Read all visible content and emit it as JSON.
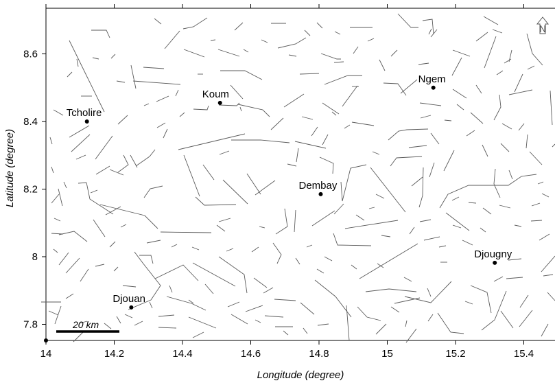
{
  "map": {
    "x_axis": {
      "title": "Longitude (degree)",
      "ticks": [
        14,
        14.2,
        14.4,
        14.6,
        14.8,
        15,
        15.2,
        15.4
      ],
      "range": [
        14.0,
        15.5
      ]
    },
    "y_axis": {
      "title": "Latitude (degree)",
      "ticks": [
        7.8,
        8,
        8.2,
        8.4,
        8.6
      ],
      "range": [
        7.75,
        8.73
      ]
    },
    "scale_bar": {
      "label": "20 km"
    },
    "north_arrow": {
      "icon": "north-arrow-icon"
    },
    "towns": [
      {
        "name": "Koum",
        "lon": 14.51,
        "lat": 8.455
      },
      {
        "name": "Ngem",
        "lon": 15.135,
        "lat": 8.5
      },
      {
        "name": "Tcholire",
        "lon": 14.12,
        "lat": 8.4
      },
      {
        "name": "Dembay",
        "lon": 14.805,
        "lat": 8.185
      },
      {
        "name": "Djougny",
        "lon": 15.315,
        "lat": 7.982
      },
      {
        "name": "Djouan",
        "lon": 14.25,
        "lat": 7.85
      }
    ]
  }
}
